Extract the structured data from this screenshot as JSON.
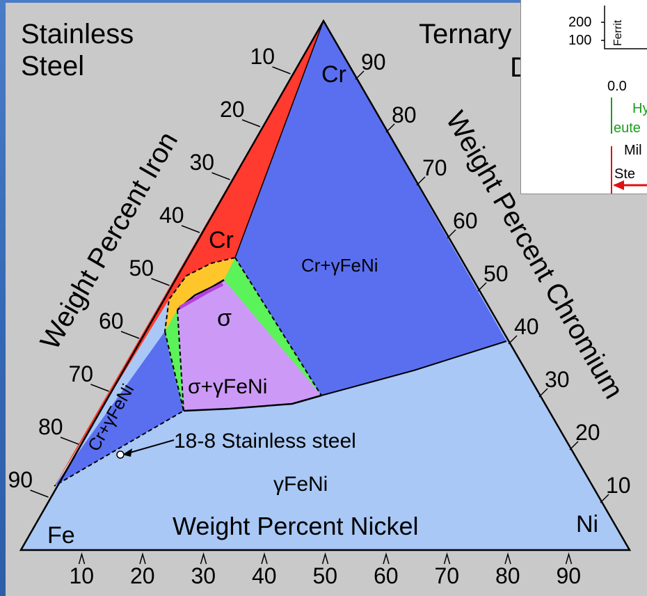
{
  "header": {
    "title_line1": "Stainless",
    "title_line2": "Steel",
    "title_right": "Ternary",
    "title_right_cut": "D"
  },
  "phases": {
    "cr": "Cr",
    "cr_gamma_right": "Cr+γFeNi",
    "sigma": "σ",
    "sigma_gamma": "σ+γFeNi",
    "cr_gamma_left": "Cr+γFeNi",
    "gamma": "γFeNi"
  },
  "corners": {
    "fe": "Fe",
    "cr": "Cr",
    "ni": "Ni"
  },
  "axes": {
    "iron_label": "Weight Percent Iron",
    "chromium_label": "Weight Percent Chromium",
    "nickel_label": "Weight Percent Nickel",
    "left_ticks": [
      "10",
      "20",
      "30",
      "40",
      "50",
      "60",
      "70",
      "80",
      "90"
    ],
    "right_ticks": [
      "90",
      "80",
      "70",
      "60",
      "50",
      "40",
      "30",
      "20",
      "10"
    ],
    "bottom_ticks": [
      "10",
      "20",
      "30",
      "40",
      "50",
      "60",
      "70",
      "80",
      "90"
    ]
  },
  "annotation": {
    "steel_label": "18-8 Stainless steel"
  },
  "inset": {
    "tick_200": "200",
    "tick_100": "100",
    "ferrite_cut": "Ferrit",
    "zero": "0.0",
    "hy_cut": "Hy",
    "eut_cut": "eute",
    "mil_cut": "Mil",
    "ste_cut": "Ste"
  },
  "colors": {
    "panel": "#c9c9c9",
    "red": "#ff3a2e",
    "blue": "#5a6ff0",
    "light_blue": "#a9c8f5",
    "purple": "#cc9af6",
    "green": "#5cf25a",
    "orange": "#ffc62c",
    "magenta": "#b640e0"
  }
}
